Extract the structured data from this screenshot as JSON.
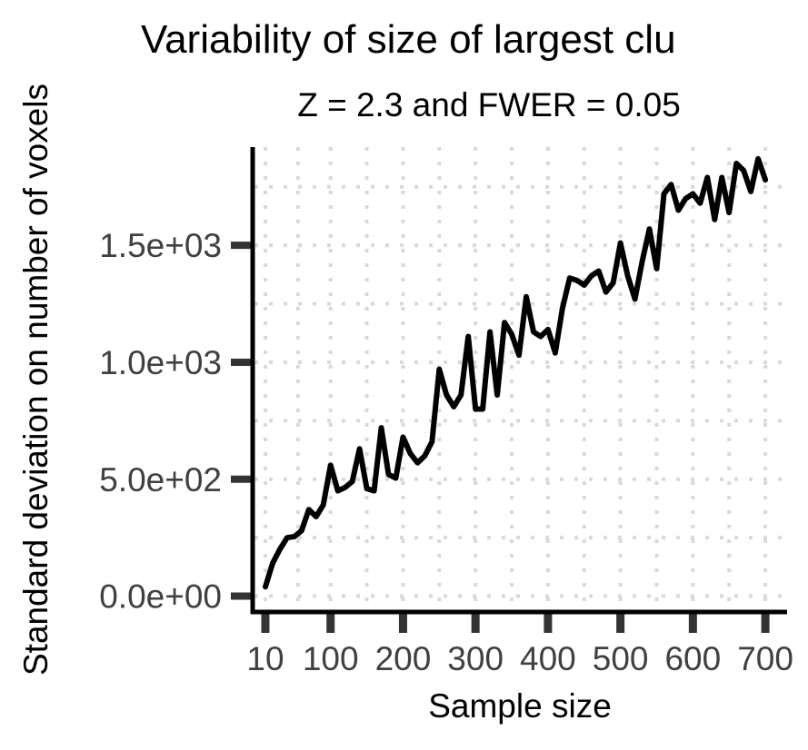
{
  "chart_data": {
    "type": "line",
    "title": "Variability of size of largest clu",
    "subtitle": "Z = 2.3 and FWER = 0.05",
    "xlabel": "Sample size",
    "ylabel": "Standard deviation on number of voxels",
    "xlim": [
      -5,
      730
    ],
    "ylim": [
      -60,
      1920
    ],
    "x_ticks": [
      10,
      100,
      200,
      300,
      400,
      500,
      600,
      700
    ],
    "x_tick_labels": [
      "10",
      "100",
      "200",
      "300",
      "400",
      "500",
      "600",
      "700"
    ],
    "y_ticks": [
      0,
      500,
      1000,
      1500
    ],
    "y_tick_labels": [
      "0.0e+00",
      "5.0e+02",
      "1.0e+03",
      "1.5e+03"
    ],
    "grid": "dotted",
    "legend": "none",
    "line_color": "#000000",
    "grid_color": "#d9d9d9",
    "series": [
      {
        "x": [
          10,
          20,
          30,
          40,
          50,
          60,
          70,
          80,
          90,
          100,
          110,
          120,
          130,
          140,
          150,
          160,
          170,
          180,
          190,
          200,
          210,
          220,
          230,
          240,
          250,
          260,
          270,
          280,
          290,
          300,
          310,
          320,
          330,
          340,
          350,
          360,
          370,
          380,
          390,
          400,
          410,
          420,
          430,
          440,
          450,
          460,
          470,
          480,
          490,
          500,
          510,
          520,
          530,
          540,
          550,
          560,
          570,
          580,
          590,
          600,
          610,
          620,
          630,
          640,
          650,
          660,
          670,
          680,
          690,
          700
        ],
        "y": [
          40,
          140,
          200,
          250,
          255,
          280,
          370,
          340,
          390,
          560,
          450,
          465,
          490,
          630,
          460,
          450,
          720,
          520,
          505,
          680,
          610,
          570,
          600,
          660,
          970,
          860,
          810,
          860,
          1110,
          800,
          800,
          1130,
          860,
          1170,
          1120,
          1030,
          1280,
          1130,
          1110,
          1140,
          1040,
          1230,
          1360,
          1350,
          1330,
          1370,
          1390,
          1300,
          1340,
          1510,
          1370,
          1270,
          1430,
          1570,
          1400,
          1720,
          1760,
          1650,
          1700,
          1720,
          1680,
          1790,
          1610,
          1790,
          1640,
          1850,
          1820,
          1730,
          1870,
          1780
        ]
      }
    ]
  }
}
